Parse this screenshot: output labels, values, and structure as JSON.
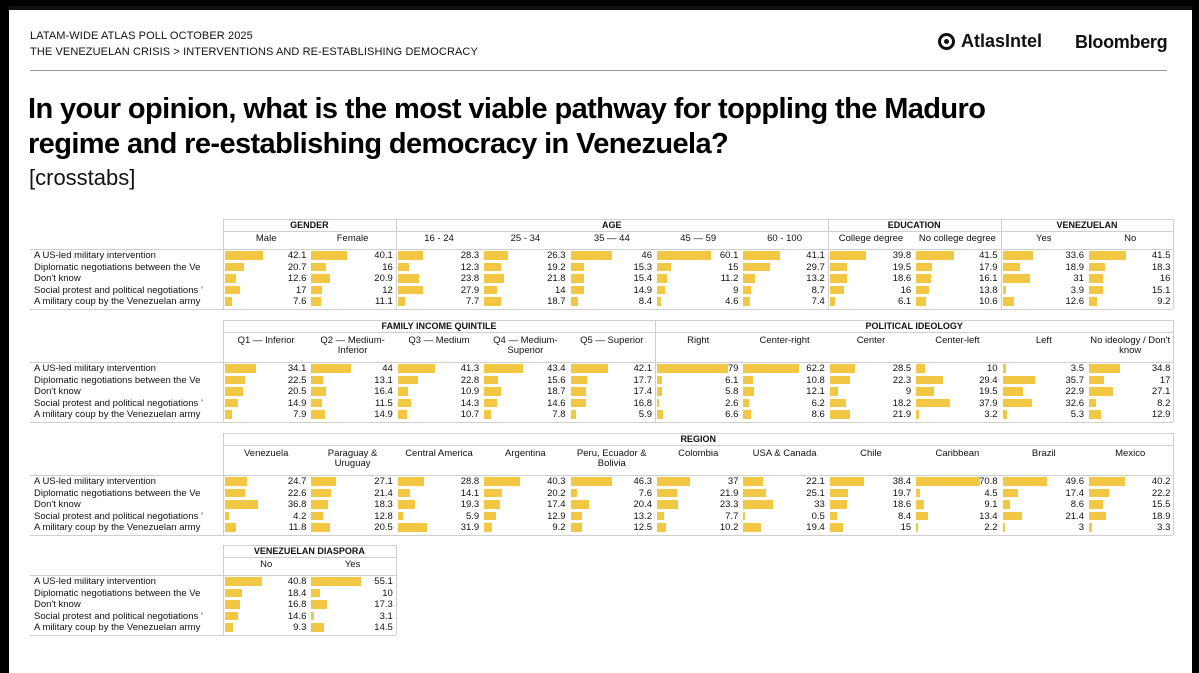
{
  "header": {
    "poll": "LATAM-WIDE ATLAS POLL OCTOBER 2025",
    "breadcrumb": "THE VENEZUELAN CRISIS > INTERVENTIONS AND RE-ESTABLISHING DEMOCRACY",
    "logo_atlas": "AtlasIntel",
    "logo_bloomberg": "Bloomberg"
  },
  "title": "In your opinion, what is the most viable pathway for toppling the Maduro regime and re-establishing democracy in Venezuela?",
  "subtitle": "[crosstabs]",
  "colors": {
    "bar": "#f2c744"
  },
  "chart_data": [
    {
      "type": "table",
      "rows": [
        "A US-led military intervention",
        "Diplomatic negotiations between the Ve",
        "Don't know",
        "Social protest and political negotiations ’",
        "A military coup by the Venezuelan army"
      ],
      "groups": [
        {
          "name": "GENDER",
          "columns": [
            {
              "label": "Male",
              "values": [
                42.1,
                20.7,
                12.6,
                17,
                7.6
              ]
            },
            {
              "label": "Female",
              "values": [
                40.1,
                16,
                20.9,
                12,
                11.1
              ]
            }
          ]
        },
        {
          "name": "AGE",
          "columns": [
            {
              "label": "16 - 24",
              "values": [
                28.3,
                12.3,
                23.8,
                27.9,
                7.7
              ]
            },
            {
              "label": "25 - 34",
              "values": [
                26.3,
                19.2,
                21.8,
                14,
                18.7
              ]
            },
            {
              "label": "35 — 44",
              "values": [
                46,
                15.3,
                15.4,
                14.9,
                8.4
              ]
            },
            {
              "label": "45 — 59",
              "values": [
                60.1,
                15,
                11.2,
                9,
                4.6
              ]
            },
            {
              "label": "60 - 100",
              "values": [
                41.1,
                29.7,
                13.2,
                8.7,
                7.4
              ]
            }
          ]
        },
        {
          "name": "EDUCATION",
          "columns": [
            {
              "label": "College degree",
              "values": [
                39.8,
                19.5,
                18.6,
                16,
                6.1
              ]
            },
            {
              "label": "No college degree",
              "values": [
                41.5,
                17.9,
                16.1,
                13.8,
                10.6
              ]
            }
          ]
        },
        {
          "name": "VENEZUELAN",
          "columns": [
            {
              "label": "Yes",
              "values": [
                33.6,
                18.9,
                31,
                3.9,
                12.6
              ]
            },
            {
              "label": "No",
              "values": [
                41.5,
                18.3,
                16,
                15.1,
                9.2
              ]
            }
          ]
        }
      ]
    },
    {
      "type": "table",
      "rows": [
        "A US-led military intervention",
        "Diplomatic negotiations between the Ve",
        "Don't know",
        "Social protest and political negotiations ’",
        "A military coup by the Venezuelan army"
      ],
      "groups": [
        {
          "name": "FAMILY INCOME QUINTILE",
          "columns": [
            {
              "label": "Q1 — Inferior",
              "values": [
                34.1,
                22.5,
                20.5,
                14.9,
                7.9
              ]
            },
            {
              "label": "Q2 — Medium-Inferior",
              "values": [
                44,
                13.1,
                16.4,
                11.5,
                14.9
              ]
            },
            {
              "label": "Q3 — Medium",
              "values": [
                41.3,
                22.8,
                10.9,
                14.3,
                10.7
              ]
            },
            {
              "label": "Q4 — Medium-Superior",
              "values": [
                43.4,
                15.6,
                18.7,
                14.6,
                7.8
              ]
            },
            {
              "label": "Q5 — Superior",
              "values": [
                42.1,
                17.7,
                17.4,
                16.8,
                5.9
              ]
            }
          ]
        },
        {
          "name": "POLITICAL IDEOLOGY",
          "columns": [
            {
              "label": "Right",
              "values": [
                79,
                6.1,
                5.8,
                2.6,
                6.6
              ]
            },
            {
              "label": "Center-right",
              "values": [
                62.2,
                10.8,
                12.1,
                6.2,
                8.6
              ]
            },
            {
              "label": "Center",
              "values": [
                28.5,
                22.3,
                9,
                18.2,
                21.9
              ]
            },
            {
              "label": "Center-left",
              "values": [
                10,
                29.4,
                19.5,
                37.9,
                3.2
              ]
            },
            {
              "label": "Left",
              "values": [
                3.5,
                35.7,
                22.9,
                32.6,
                5.3
              ]
            },
            {
              "label": "No ideology / Don't know",
              "values": [
                34.8,
                17,
                27.1,
                8.2,
                12.9
              ]
            }
          ]
        }
      ]
    },
    {
      "type": "table",
      "rows": [
        "A US-led military intervention",
        "Diplomatic negotiations between the Ve",
        "Don't know",
        "Social protest and political negotiations ’",
        "A military coup by the Venezuelan army"
      ],
      "groups": [
        {
          "name": "REGION",
          "columns": [
            {
              "label": "Venezuela",
              "values": [
                24.7,
                22.6,
                36.8,
                4.2,
                11.8
              ]
            },
            {
              "label": "Paraguay & Uruguay",
              "values": [
                27.1,
                21.4,
                18.3,
                12.8,
                20.5
              ]
            },
            {
              "label": "Central America",
              "values": [
                28.8,
                14.1,
                19.3,
                5.9,
                31.9
              ]
            },
            {
              "label": "Argentina",
              "values": [
                40.3,
                20.2,
                17.4,
                12.9,
                9.2
              ]
            },
            {
              "label": "Peru, Ecuador & Bolivia",
              "values": [
                46.3,
                7.6,
                20.4,
                13.2,
                12.5
              ]
            },
            {
              "label": "Colombia",
              "values": [
                37,
                21.9,
                23.3,
                7.7,
                10.2
              ]
            },
            {
              "label": "USA & Canada",
              "values": [
                22.1,
                25.1,
                33,
                0.5,
                19.4
              ]
            },
            {
              "label": "Chile",
              "values": [
                38.4,
                19.7,
                18.6,
                8.4,
                15
              ]
            },
            {
              "label": "Caribbean",
              "values": [
                70.8,
                4.5,
                9.1,
                13.4,
                2.2
              ]
            },
            {
              "label": "Brazil",
              "values": [
                49.6,
                17.4,
                8.6,
                21.4,
                3
              ]
            },
            {
              "label": "Mexico",
              "values": [
                40.2,
                22.2,
                15.5,
                18.9,
                3.3
              ]
            }
          ]
        }
      ]
    },
    {
      "type": "table",
      "rows": [
        "A US-led military intervention",
        "Diplomatic negotiations between the Ve",
        "Don't know",
        "Social protest and political negotiations ’",
        "A military coup by the Venezuelan army"
      ],
      "groups": [
        {
          "name": "VENEZUELAN DIASPORA",
          "columns": [
            {
              "label": "No",
              "values": [
                40.8,
                18.4,
                16.8,
                14.6,
                9.3
              ]
            },
            {
              "label": "Yes",
              "values": [
                55.1,
                10,
                17.3,
                3.1,
                14.5
              ]
            }
          ]
        }
      ]
    }
  ]
}
